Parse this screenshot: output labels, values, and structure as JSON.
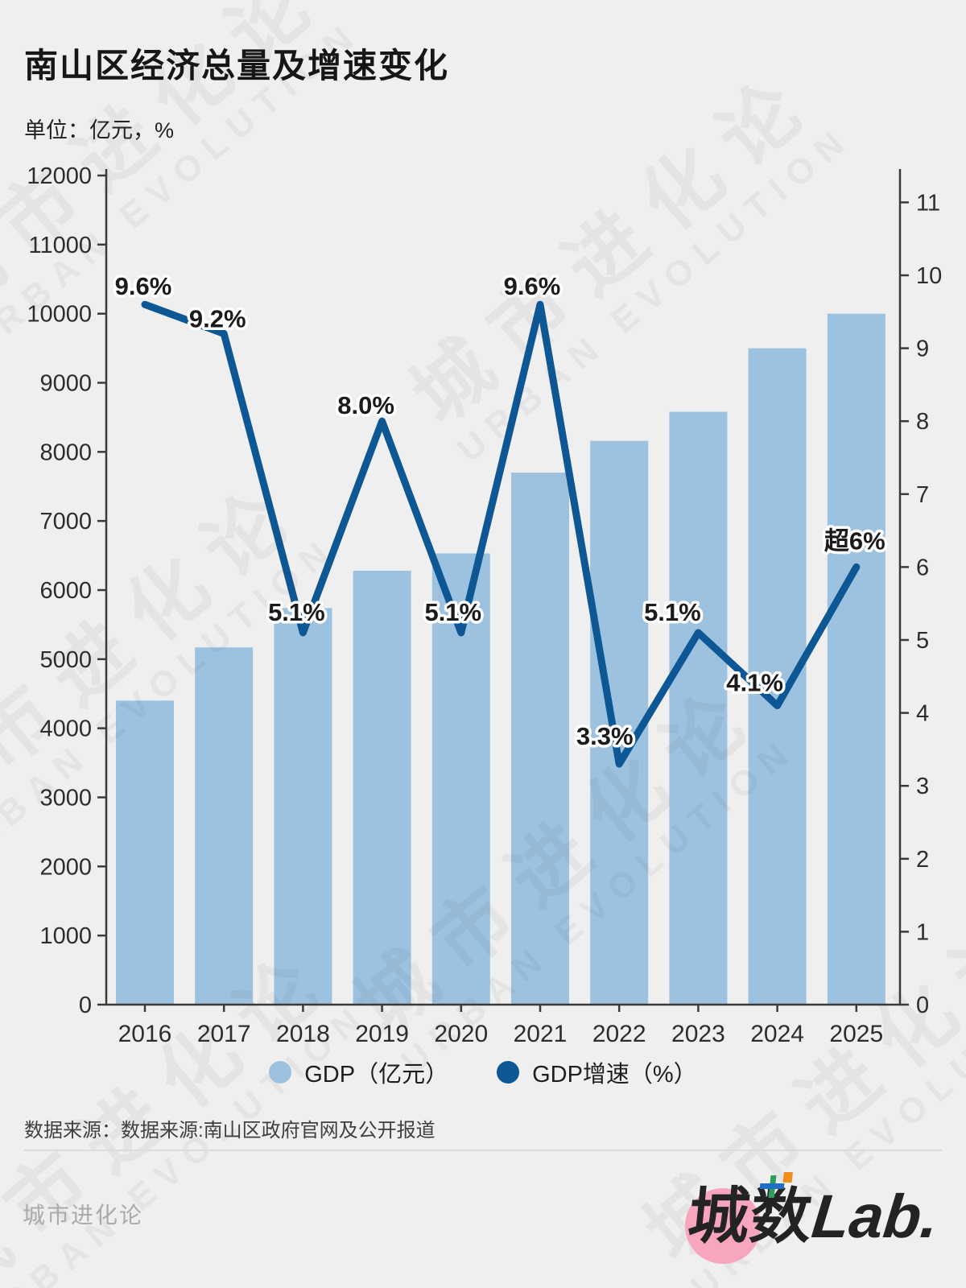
{
  "title": "南山区经济总量及增速变化",
  "subtitle": "单位：亿元，%",
  "source": "数据来源：数据来源:南山区政府官网及公开报道",
  "footer": {
    "left": "城市进化论",
    "logo_cheng": "城",
    "logo_shu": "数",
    "logo_lab": "Lab."
  },
  "watermark": {
    "cn": "城市进化论",
    "en": "URBAN EVOLUTION"
  },
  "legend": [
    {
      "label": "GDP（亿元）",
      "color": "#9CC2E0"
    },
    {
      "label": "GDP增速（%）",
      "color": "#0D5794"
    }
  ],
  "colors": {
    "background": "#EFEFEF",
    "bar": "#9CC2E0",
    "line": "#0D5794",
    "axis": "#3A3A3A",
    "logo_pink": "#F7A6BE"
  },
  "chart_data": {
    "type": "bar+line",
    "categories": [
      "2016",
      "2017",
      "2018",
      "2019",
      "2020",
      "2021",
      "2022",
      "2023",
      "2024",
      "2025"
    ],
    "series": [
      {
        "name": "GDP（亿元）",
        "type": "bar",
        "axis": "left",
        "values": [
          4400,
          5170,
          5740,
          6280,
          6530,
          7700,
          8160,
          8580,
          9500,
          10000
        ]
      },
      {
        "name": "GDP增速（%）",
        "type": "line",
        "axis": "right",
        "values": [
          9.6,
          9.2,
          5.1,
          8.0,
          5.1,
          9.6,
          3.3,
          5.1,
          4.1,
          6.0
        ],
        "point_labels": [
          "9.6%",
          "9.2%",
          "5.1%",
          "8.0%",
          "5.1%",
          "9.6%",
          "3.3%",
          "5.1%",
          "4.1%",
          "超6%"
        ]
      }
    ],
    "left_axis": {
      "min": 0,
      "max": 12000,
      "step": 1000
    },
    "right_axis": {
      "min": 0,
      "max": 11.45,
      "step": 1,
      "max_tick": 11
    },
    "grid": false,
    "legend_position": "bottom"
  }
}
